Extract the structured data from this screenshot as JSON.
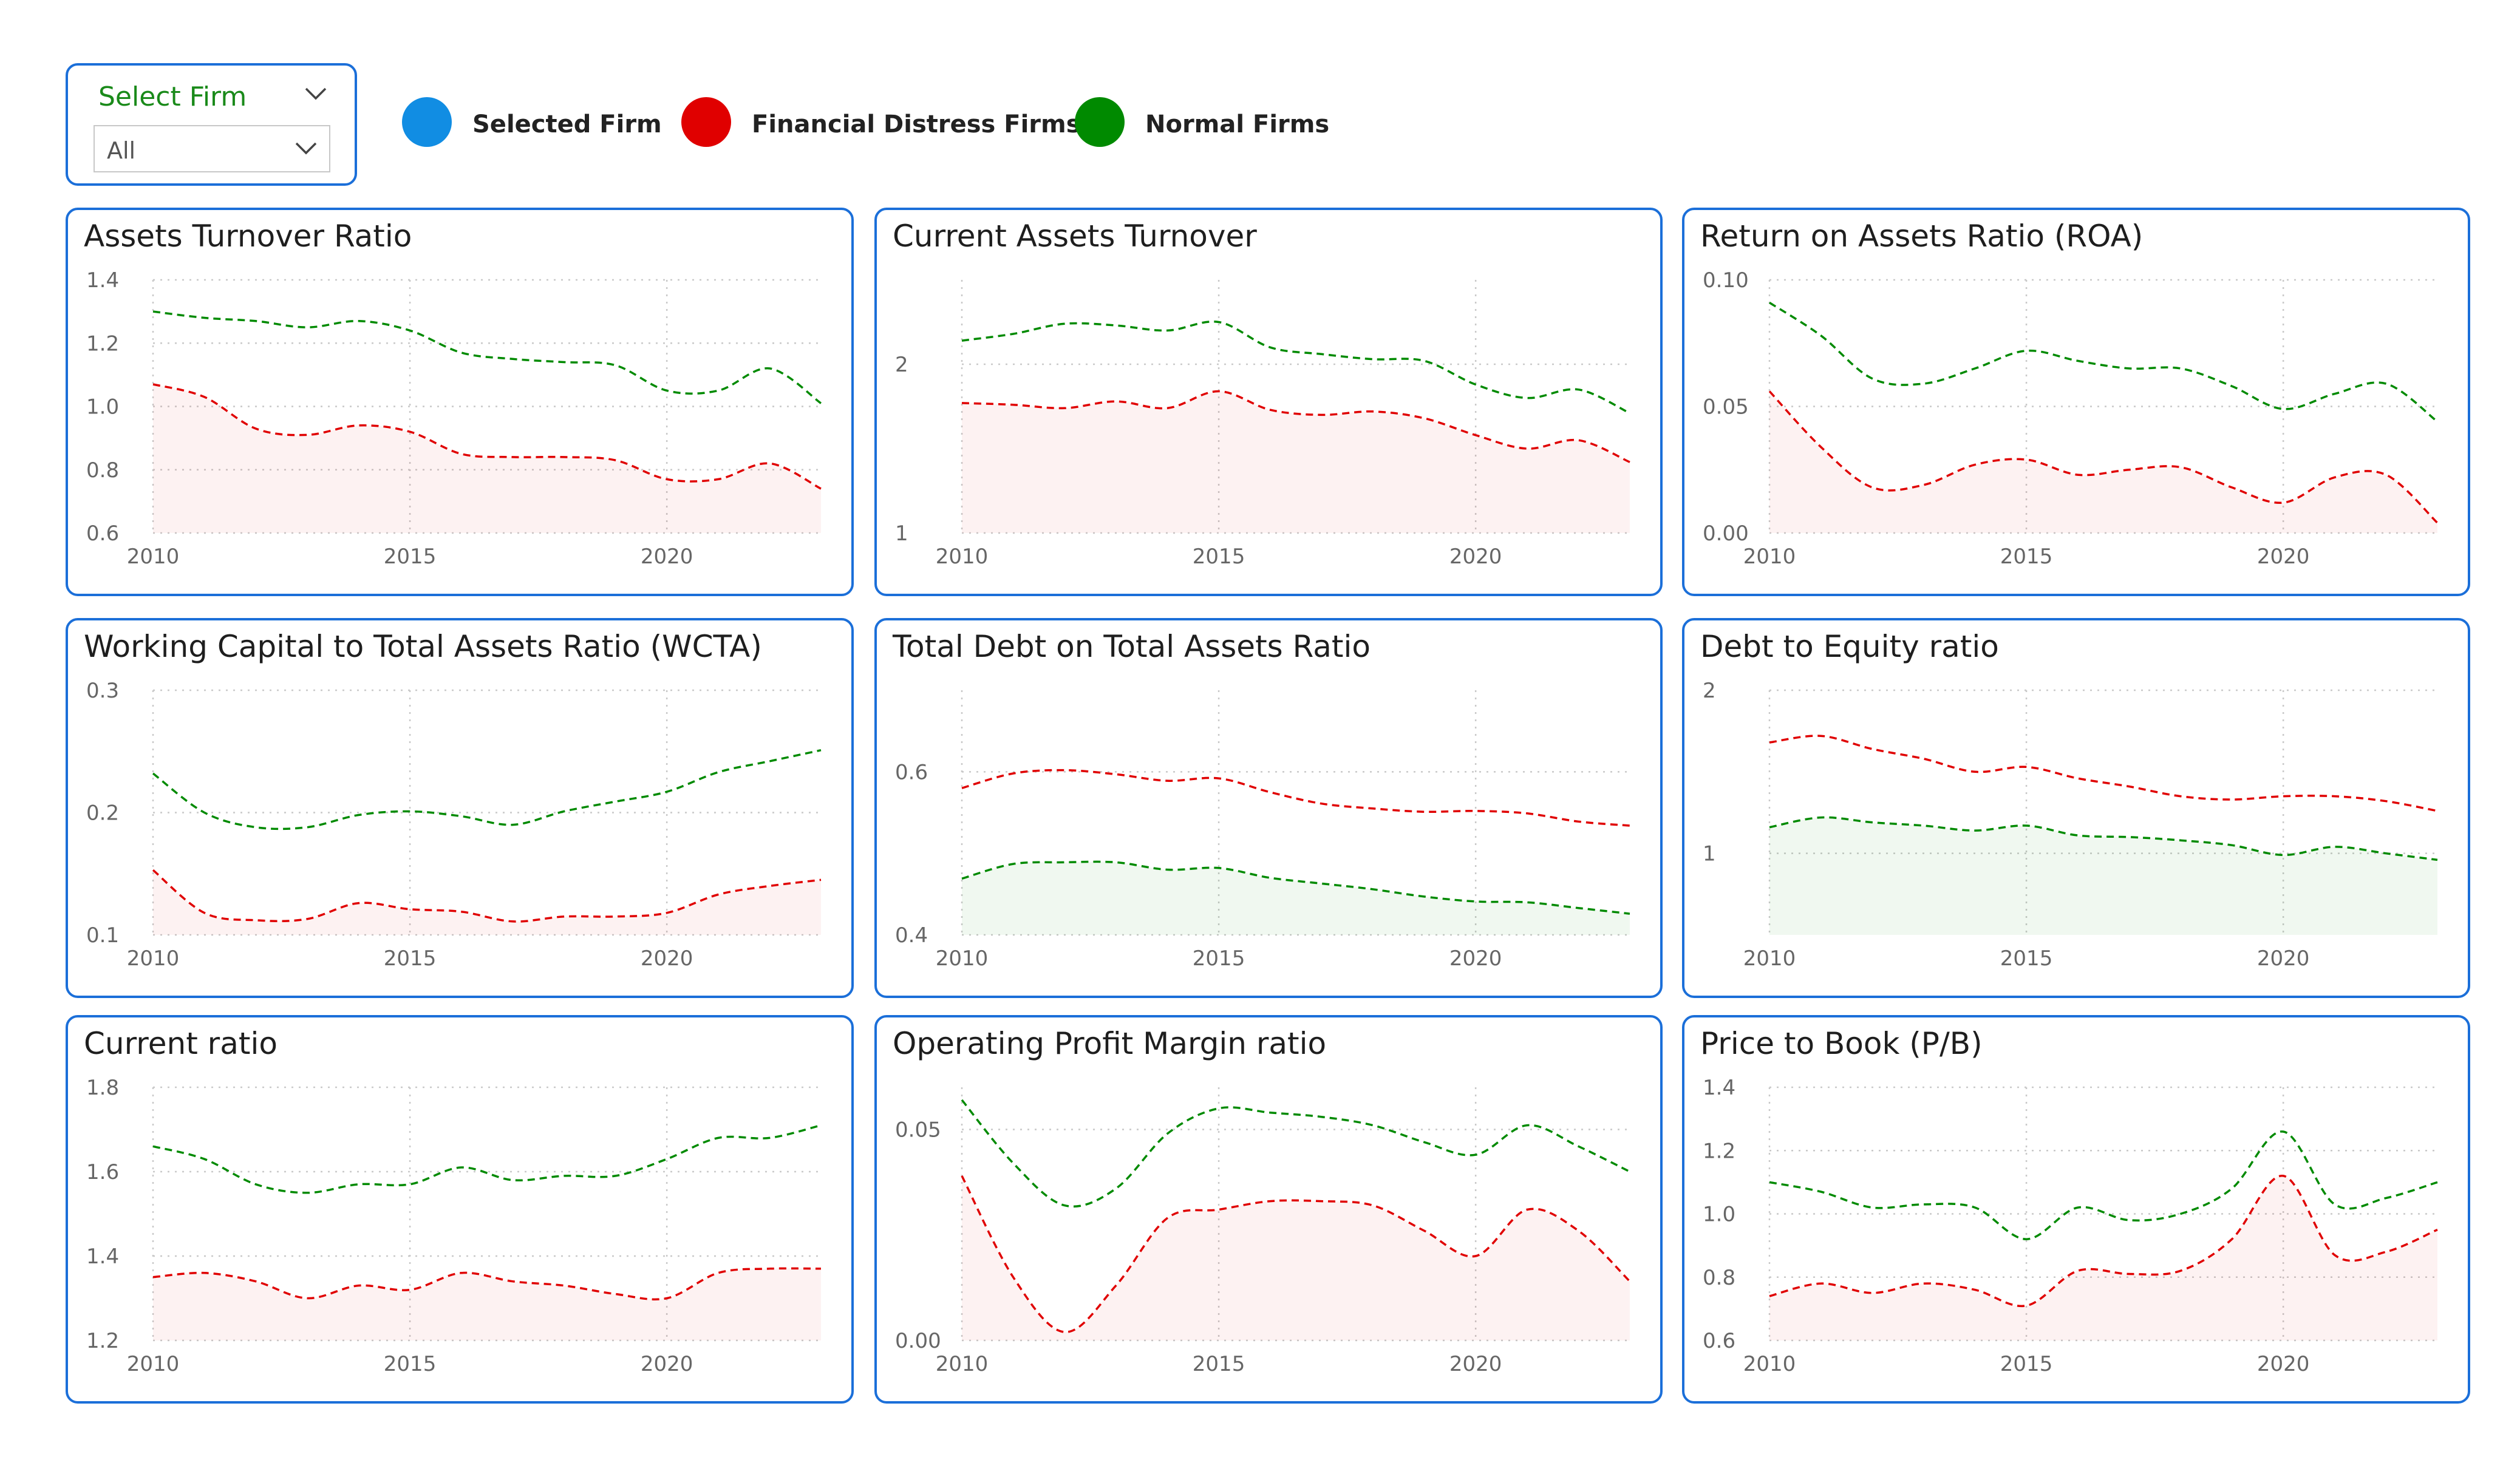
{
  "slicer": {
    "title": "Select Firm",
    "value": "All"
  },
  "legend": [
    {
      "label": "Selected Firm",
      "color": "#118de3"
    },
    {
      "label": "Financial Distress Firms",
      "color": "#e00000"
    },
    {
      "label": "Normal Firms",
      "color": "#008a00"
    }
  ],
  "chart_data": [
    {
      "type": "line",
      "title": "Assets Turnover Ratio",
      "x": [
        2010,
        2011,
        2012,
        2013,
        2014,
        2015,
        2016,
        2017,
        2018,
        2019,
        2020,
        2021,
        2022,
        2023
      ],
      "xticks": [
        2010,
        2015,
        2020
      ],
      "ylim": [
        0.6,
        1.4
      ],
      "yticks": [
        0.6,
        0.8,
        1.0,
        1.2,
        1.4
      ],
      "ydec": 1,
      "shade": "Financial Distress Firms",
      "series": [
        {
          "name": "Normal Firms",
          "values": [
            1.3,
            1.28,
            1.27,
            1.25,
            1.27,
            1.24,
            1.17,
            1.15,
            1.14,
            1.13,
            1.05,
            1.05,
            1.12,
            1.01
          ]
        },
        {
          "name": "Financial Distress Firms",
          "values": [
            1.07,
            1.03,
            0.93,
            0.91,
            0.94,
            0.92,
            0.85,
            0.84,
            0.84,
            0.83,
            0.77,
            0.77,
            0.82,
            0.74
          ]
        }
      ]
    },
    {
      "type": "line",
      "title": "Current Assets Turnover",
      "x": [
        2010,
        2011,
        2012,
        2013,
        2014,
        2015,
        2016,
        2017,
        2018,
        2019,
        2020,
        2021,
        2022,
        2023
      ],
      "xticks": [
        2010,
        2015,
        2020
      ],
      "ylim": [
        1,
        2.5
      ],
      "yticks": [
        1,
        2
      ],
      "ydec": 0,
      "shade": "Financial Distress Firms",
      "series": [
        {
          "name": "Normal Firms",
          "values": [
            2.14,
            2.18,
            2.24,
            2.23,
            2.2,
            2.25,
            2.1,
            2.06,
            2.03,
            2.02,
            1.88,
            1.8,
            1.85,
            1.71
          ]
        },
        {
          "name": "Financial Distress Firms",
          "values": [
            1.77,
            1.76,
            1.74,
            1.78,
            1.74,
            1.84,
            1.73,
            1.7,
            1.72,
            1.68,
            1.58,
            1.5,
            1.55,
            1.42
          ]
        }
      ]
    },
    {
      "type": "line",
      "title": "Return on Assets Ratio (ROA)",
      "x": [
        2010,
        2011,
        2012,
        2013,
        2014,
        2015,
        2016,
        2017,
        2018,
        2019,
        2020,
        2021,
        2022,
        2023
      ],
      "xticks": [
        2010,
        2015,
        2020
      ],
      "ylim": [
        0,
        0.1
      ],
      "yticks": [
        0.0,
        0.05,
        0.1
      ],
      "ydec": 2,
      "shade": "Financial Distress Firms",
      "series": [
        {
          "name": "Normal Firms",
          "values": [
            0.091,
            0.078,
            0.061,
            0.059,
            0.065,
            0.072,
            0.068,
            0.065,
            0.065,
            0.058,
            0.049,
            0.055,
            0.059,
            0.044
          ]
        },
        {
          "name": "Financial Distress Firms",
          "values": [
            0.056,
            0.034,
            0.018,
            0.019,
            0.027,
            0.029,
            0.023,
            0.025,
            0.026,
            0.018,
            0.012,
            0.022,
            0.023,
            0.004
          ]
        }
      ]
    },
    {
      "type": "line",
      "title": "Working Capital to Total Assets Ratio (WCTA)",
      "x": [
        2010,
        2011,
        2012,
        2013,
        2014,
        2015,
        2016,
        2017,
        2018,
        2019,
        2020,
        2021,
        2022,
        2023
      ],
      "xticks": [
        2010,
        2015,
        2020
      ],
      "ylim": [
        0.1,
        0.3
      ],
      "yticks": [
        0.1,
        0.2,
        0.3
      ],
      "ydec": 1,
      "shade": "Financial Distress Firms",
      "series": [
        {
          "name": "Normal Firms",
          "values": [
            0.232,
            0.2,
            0.188,
            0.188,
            0.198,
            0.201,
            0.197,
            0.19,
            0.201,
            0.209,
            0.217,
            0.233,
            0.242,
            0.251
          ]
        },
        {
          "name": "Financial Distress Firms",
          "values": [
            0.153,
            0.118,
            0.112,
            0.113,
            0.126,
            0.121,
            0.119,
            0.111,
            0.115,
            0.115,
            0.118,
            0.133,
            0.14,
            0.145
          ]
        }
      ]
    },
    {
      "type": "line",
      "title": "Total Debt on Total Assets Ratio",
      "x": [
        2010,
        2011,
        2012,
        2013,
        2014,
        2015,
        2016,
        2017,
        2018,
        2019,
        2020,
        2021,
        2022,
        2023
      ],
      "xticks": [
        2010,
        2015,
        2020
      ],
      "ylim": [
        0.4,
        0.7
      ],
      "yticks": [
        0.4,
        0.6
      ],
      "ydec": 1,
      "shade": "Normal Firms",
      "series": [
        {
          "name": "Financial Distress Firms",
          "values": [
            0.58,
            0.598,
            0.602,
            0.597,
            0.589,
            0.592,
            0.575,
            0.561,
            0.555,
            0.551,
            0.552,
            0.549,
            0.539,
            0.534
          ]
        },
        {
          "name": "Normal Firms",
          "values": [
            0.469,
            0.487,
            0.489,
            0.489,
            0.48,
            0.482,
            0.47,
            0.463,
            0.456,
            0.447,
            0.441,
            0.44,
            0.433,
            0.426
          ]
        }
      ]
    },
    {
      "type": "line",
      "title": "Debt to Equity ratio",
      "x": [
        2010,
        2011,
        2012,
        2013,
        2014,
        2015,
        2016,
        2017,
        2018,
        2019,
        2020,
        2021,
        2022,
        2023
      ],
      "xticks": [
        2010,
        2015,
        2020
      ],
      "ylim": [
        0.5,
        2
      ],
      "yticks": [
        1,
        2
      ],
      "ydec": 0,
      "shade": "Normal Firms",
      "series": [
        {
          "name": "Financial Distress Firms",
          "values": [
            1.68,
            1.72,
            1.64,
            1.58,
            1.5,
            1.53,
            1.46,
            1.41,
            1.35,
            1.33,
            1.35,
            1.35,
            1.32,
            1.26
          ]
        },
        {
          "name": "Normal Firms",
          "values": [
            1.16,
            1.22,
            1.19,
            1.17,
            1.14,
            1.17,
            1.11,
            1.1,
            1.08,
            1.05,
            0.99,
            1.04,
            1.0,
            0.96
          ]
        }
      ]
    },
    {
      "type": "line",
      "title": "Current ratio",
      "x": [
        2010,
        2011,
        2012,
        2013,
        2014,
        2015,
        2016,
        2017,
        2018,
        2019,
        2020,
        2021,
        2022,
        2023
      ],
      "xticks": [
        2010,
        2015,
        2020
      ],
      "ylim": [
        1.2,
        1.8
      ],
      "yticks": [
        1.2,
        1.4,
        1.6,
        1.8
      ],
      "ydec": 1,
      "shade": "Financial Distress Firms",
      "series": [
        {
          "name": "Normal Firms",
          "values": [
            1.66,
            1.63,
            1.57,
            1.55,
            1.57,
            1.57,
            1.61,
            1.58,
            1.59,
            1.59,
            1.63,
            1.68,
            1.68,
            1.71
          ]
        },
        {
          "name": "Financial Distress Firms",
          "values": [
            1.35,
            1.36,
            1.34,
            1.3,
            1.33,
            1.32,
            1.36,
            1.34,
            1.33,
            1.31,
            1.3,
            1.36,
            1.37,
            1.37
          ]
        }
      ]
    },
    {
      "type": "line",
      "title": "Operating Profit Margin ratio",
      "x": [
        2010,
        2011,
        2012,
        2013,
        2014,
        2015,
        2016,
        2017,
        2018,
        2019,
        2020,
        2021,
        2022,
        2023
      ],
      "xticks": [
        2010,
        2015,
        2020
      ],
      "ylim": [
        0,
        0.06
      ],
      "yticks": [
        0.0,
        0.05
      ],
      "ydec": 2,
      "shade": "Financial Distress Firms",
      "series": [
        {
          "name": "Normal Firms",
          "values": [
            0.057,
            0.042,
            0.032,
            0.036,
            0.049,
            0.055,
            0.054,
            0.053,
            0.051,
            0.047,
            0.044,
            0.051,
            0.046,
            0.04
          ]
        },
        {
          "name": "Financial Distress Firms",
          "values": [
            0.039,
            0.015,
            0.002,
            0.013,
            0.029,
            0.031,
            0.033,
            0.033,
            0.032,
            0.026,
            0.02,
            0.031,
            0.026,
            0.014
          ]
        }
      ]
    },
    {
      "type": "line",
      "title": "Price to Book (P/B)",
      "x": [
        2010,
        2011,
        2012,
        2013,
        2014,
        2015,
        2016,
        2017,
        2018,
        2019,
        2020,
        2021,
        2022,
        2023
      ],
      "xticks": [
        2010,
        2015,
        2020
      ],
      "ylim": [
        0.6,
        1.4
      ],
      "yticks": [
        0.6,
        0.8,
        1.0,
        1.2,
        1.4
      ],
      "ydec": 1,
      "shade": "Financial Distress Firms",
      "series": [
        {
          "name": "Normal Firms",
          "values": [
            1.1,
            1.07,
            1.02,
            1.03,
            1.02,
            0.92,
            1.02,
            0.98,
            1.0,
            1.08,
            1.26,
            1.03,
            1.05,
            1.1
          ]
        },
        {
          "name": "Financial Distress Firms",
          "values": [
            0.74,
            0.78,
            0.75,
            0.78,
            0.76,
            0.71,
            0.82,
            0.81,
            0.82,
            0.92,
            1.12,
            0.87,
            0.88,
            0.95
          ]
        }
      ]
    }
  ]
}
